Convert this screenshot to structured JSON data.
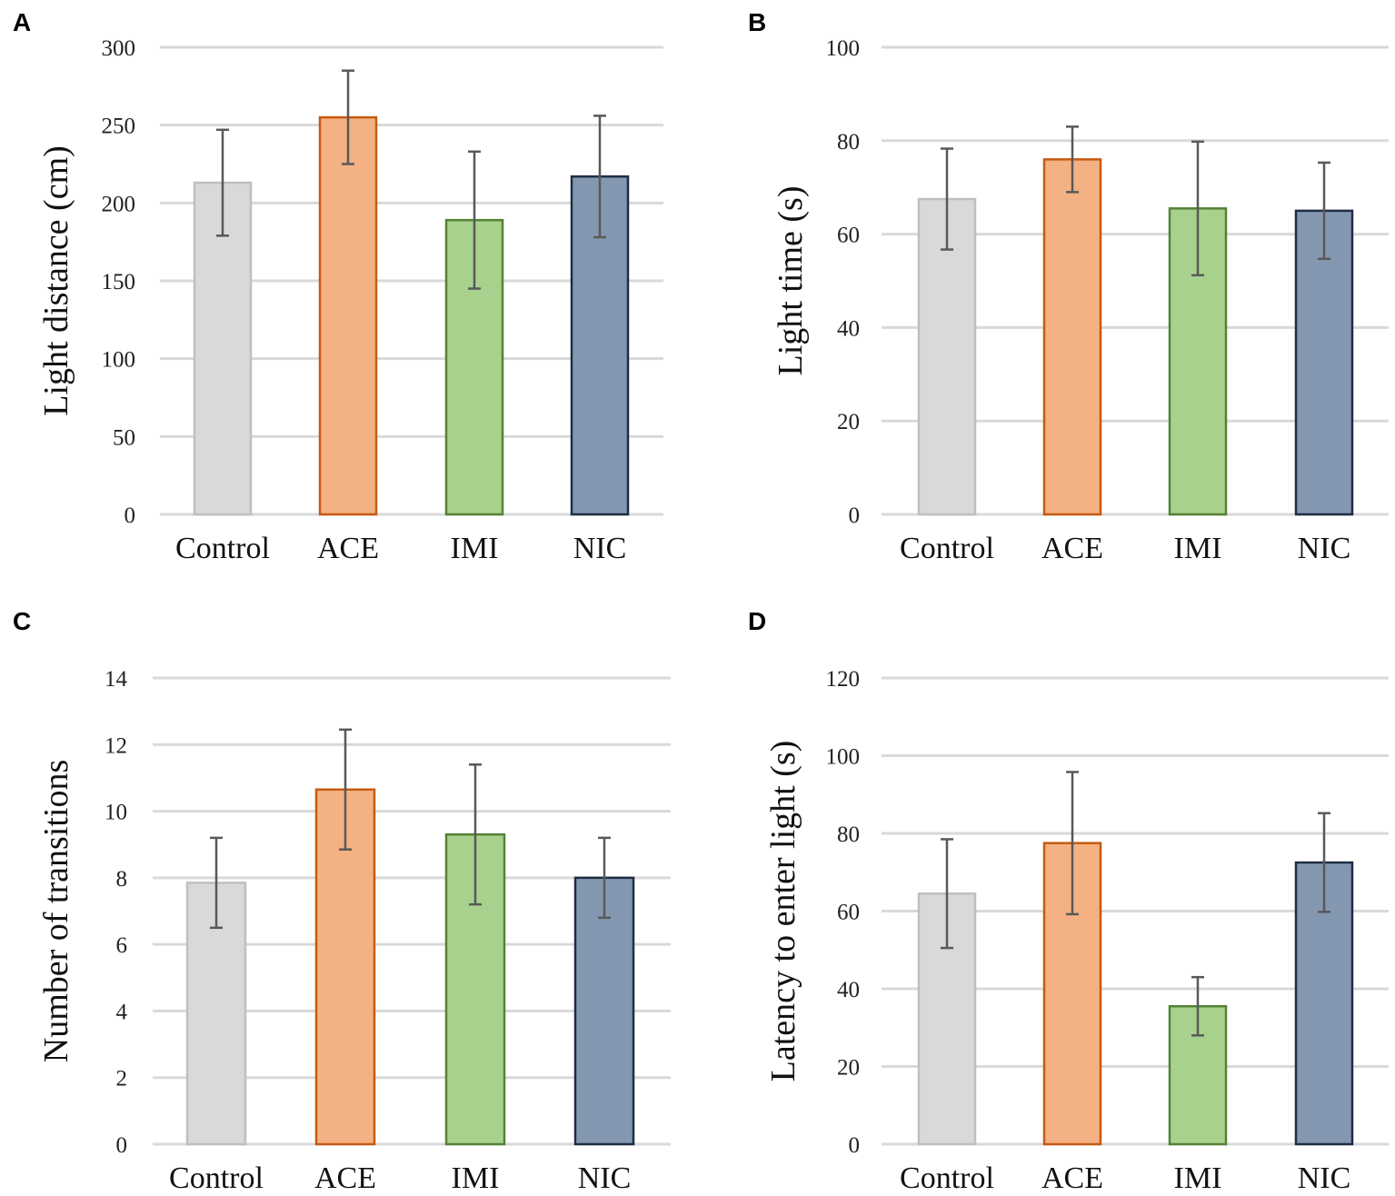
{
  "chart_data": [
    {
      "panel": "A",
      "type": "bar",
      "categories": [
        "Control",
        "ACE",
        "IMI",
        "NIC"
      ],
      "values": [
        213,
        255,
        189,
        217
      ],
      "errors": [
        34,
        30,
        44,
        39
      ],
      "ylabel": "Light distance (cm)",
      "xlabel": "",
      "ylim": [
        0,
        300
      ],
      "yticks": [
        0,
        50,
        100,
        150,
        200,
        250,
        300
      ],
      "grid": true
    },
    {
      "panel": "B",
      "type": "bar",
      "categories": [
        "Control",
        "ACE",
        "IMI",
        "NIC"
      ],
      "values": [
        67.5,
        76,
        65.5,
        65
      ],
      "errors": [
        10.8,
        7,
        14.3,
        10.3
      ],
      "ylabel": "Light time (s)",
      "xlabel": "",
      "ylim": [
        0,
        100
      ],
      "yticks": [
        0,
        20,
        40,
        60,
        80,
        100
      ],
      "grid": true
    },
    {
      "panel": "C",
      "type": "bar",
      "categories": [
        "Control",
        "ACE",
        "IMI",
        "NIC"
      ],
      "values": [
        7.85,
        10.65,
        9.3,
        8.0
      ],
      "errors": [
        1.35,
        1.8,
        2.1,
        1.2
      ],
      "ylabel": "Number of transitions",
      "xlabel": "",
      "ylim": [
        0,
        14
      ],
      "yticks": [
        0,
        2,
        4,
        6,
        8,
        10,
        12,
        14
      ],
      "grid": true
    },
    {
      "panel": "D",
      "type": "bar",
      "categories": [
        "Control",
        "ACE",
        "IMI",
        "NIC"
      ],
      "values": [
        64.5,
        77.5,
        35.5,
        72.5
      ],
      "errors": [
        14,
        18.3,
        7.5,
        12.7
      ],
      "ylabel": "Latency to enter light (s)",
      "xlabel": "",
      "ylim": [
        0,
        120
      ],
      "yticks": [
        0,
        20,
        40,
        60,
        80,
        100,
        120
      ],
      "grid": true
    }
  ],
  "colors": {
    "fills": [
      "#d9d9d9",
      "#f4b183",
      "#a9d18e",
      "#8497b0"
    ],
    "strokes": [
      "#bfbfbf",
      "#c55a11",
      "#548235",
      "#1f2d44"
    ],
    "grid": "#d9d9d9",
    "errorbar": "#595959"
  }
}
